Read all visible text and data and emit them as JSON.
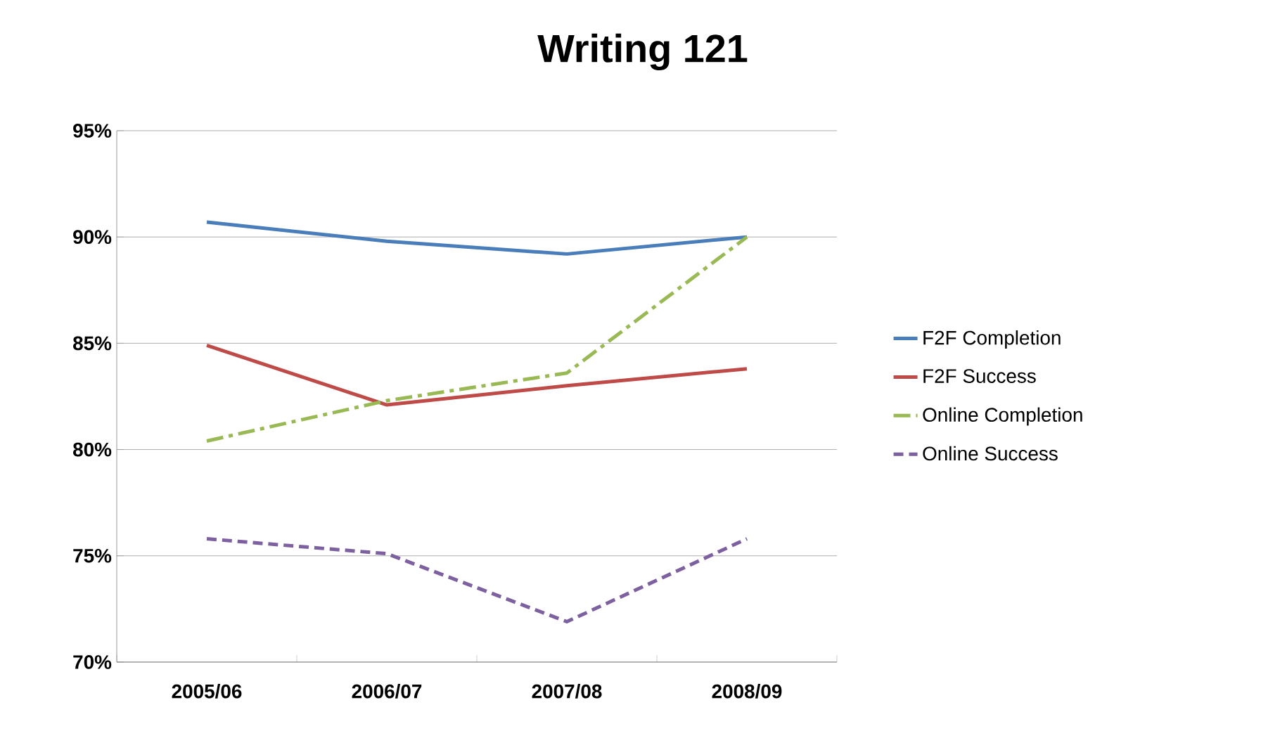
{
  "chart_data": {
    "type": "line",
    "title": "Writing 121",
    "categories": [
      "2005/06",
      "2006/07",
      "2007/08",
      "2008/09"
    ],
    "series": [
      {
        "name": "F2F Completion",
        "color": "#4a7ebb",
        "line_style": "solid",
        "values": [
          90.7,
          89.8,
          89.2,
          90.0
        ]
      },
      {
        "name": "F2F Success",
        "color": "#be4b48",
        "line_style": "solid",
        "values": [
          84.9,
          82.1,
          83.0,
          83.8
        ]
      },
      {
        "name": "Online Completion",
        "color": "#98b954",
        "line_style": "dashdot",
        "values": [
          80.4,
          82.3,
          83.6,
          90.0
        ]
      },
      {
        "name": "Online Success",
        "color": "#7d60a0",
        "line_style": "dashed",
        "values": [
          75.8,
          75.1,
          71.9,
          75.8
        ]
      }
    ],
    "ylim": [
      70,
      95
    ],
    "yticks": [
      {
        "value": 70,
        "label": "70%"
      },
      {
        "value": 75,
        "label": "75%"
      },
      {
        "value": 80,
        "label": "80%"
      },
      {
        "value": 85,
        "label": "85%"
      },
      {
        "value": 90,
        "label": "90%"
      },
      {
        "value": 95,
        "label": "95%"
      }
    ],
    "grid": "y",
    "legend": "right",
    "marker": "none"
  }
}
